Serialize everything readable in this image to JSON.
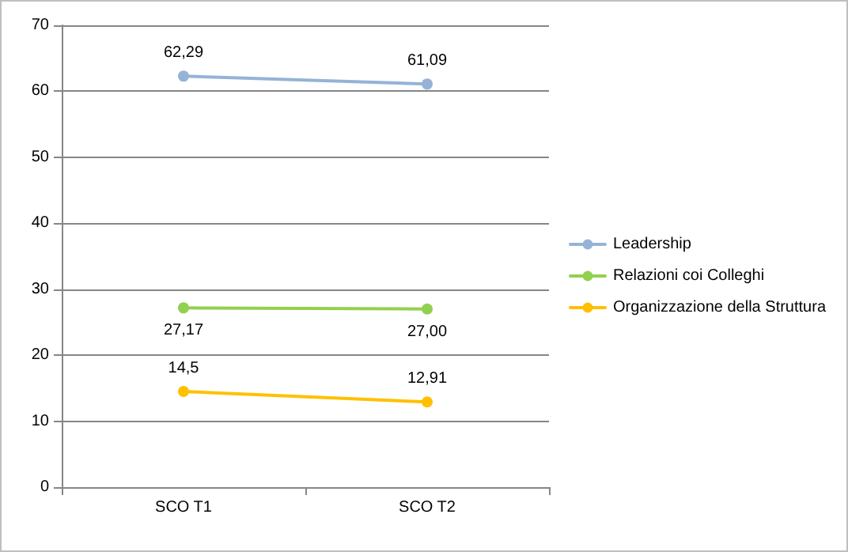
{
  "chart_data": {
    "type": "line",
    "categories": [
      "SCO T1",
      "SCO T2"
    ],
    "series": [
      {
        "name": "Leadership",
        "color": "#95b3d7",
        "values": [
          62.29,
          61.09
        ],
        "value_labels": [
          "62,29",
          "61,09"
        ]
      },
      {
        "name": "Relazioni coi Colleghi",
        "color": "#92d050",
        "values": [
          27.17,
          27.0
        ],
        "value_labels": [
          "27,17",
          "27,00"
        ]
      },
      {
        "name": "Organizzazione della Struttura",
        "color": "#ffc000",
        "values": [
          14.5,
          12.91
        ],
        "value_labels": [
          "14,5",
          "12,91"
        ]
      }
    ],
    "ylim": [
      0,
      70
    ],
    "yticks": [
      0,
      10,
      20,
      30,
      40,
      50,
      60,
      70
    ],
    "grid": "y",
    "legend": "right",
    "marker": "circle",
    "line_style": "solid"
  }
}
